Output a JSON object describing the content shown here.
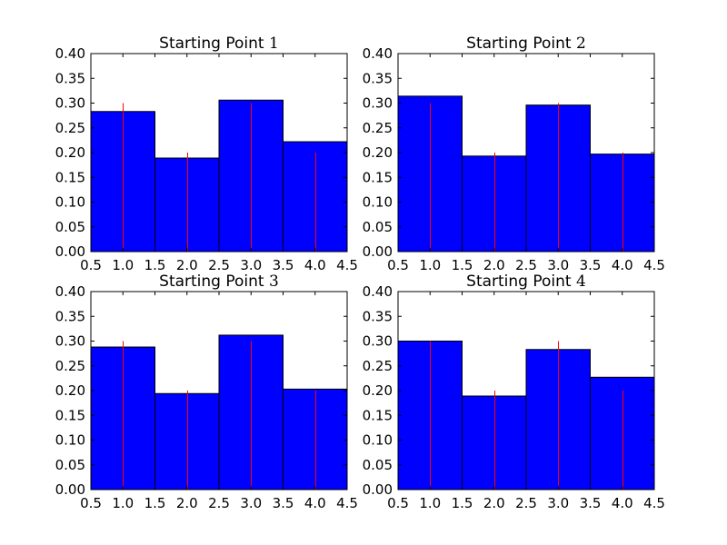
{
  "colors": {
    "bar_fill": "#0000ff",
    "bar_edge": "#000000",
    "reference_line": "#ff0000",
    "background": "#ffffff"
  },
  "chart_data": [
    {
      "type": "bar",
      "title": "Starting Point 1",
      "title_text": "Starting Point ",
      "title_number": "1",
      "xlim": [
        0.5,
        4.5
      ],
      "ylim": [
        0.0,
        0.4
      ],
      "xticks": [
        "0.5",
        "1.0",
        "1.5",
        "2.0",
        "2.5",
        "3.0",
        "3.5",
        "4.0",
        "4.5"
      ],
      "yticks": [
        "0.00",
        "0.05",
        "0.10",
        "0.15",
        "0.20",
        "0.25",
        "0.30",
        "0.35",
        "0.40"
      ],
      "bar_edges": [
        0.5,
        1.5,
        2.5,
        3.5,
        4.5
      ],
      "values": [
        0.283,
        0.189,
        0.306,
        0.222
      ],
      "reference_lines": [
        {
          "x": 1.0,
          "y": 0.3
        },
        {
          "x": 2.0,
          "y": 0.2
        },
        {
          "x": 3.0,
          "y": 0.3
        },
        {
          "x": 4.0,
          "y": 0.2
        }
      ],
      "grid": false
    },
    {
      "type": "bar",
      "title": "Starting Point 2",
      "title_text": "Starting Point ",
      "title_number": "2",
      "xlim": [
        0.5,
        4.5
      ],
      "ylim": [
        0.0,
        0.4
      ],
      "xticks": [
        "0.5",
        "1.0",
        "1.5",
        "2.0",
        "2.5",
        "3.0",
        "3.5",
        "4.0",
        "4.5"
      ],
      "yticks": [
        "0.00",
        "0.05",
        "0.10",
        "0.15",
        "0.20",
        "0.25",
        "0.30",
        "0.35",
        "0.40"
      ],
      "bar_edges": [
        0.5,
        1.5,
        2.5,
        3.5,
        4.5
      ],
      "values": [
        0.314,
        0.193,
        0.296,
        0.197
      ],
      "reference_lines": [
        {
          "x": 1.0,
          "y": 0.3
        },
        {
          "x": 2.0,
          "y": 0.2
        },
        {
          "x": 3.0,
          "y": 0.3
        },
        {
          "x": 4.0,
          "y": 0.2
        }
      ],
      "grid": false
    },
    {
      "type": "bar",
      "title": "Starting Point 3",
      "title_text": "Starting Point ",
      "title_number": "3",
      "xlim": [
        0.5,
        4.5
      ],
      "ylim": [
        0.0,
        0.4
      ],
      "xticks": [
        "0.5",
        "1.0",
        "1.5",
        "2.0",
        "2.5",
        "3.0",
        "3.5",
        "4.0",
        "4.5"
      ],
      "yticks": [
        "0.00",
        "0.05",
        "0.10",
        "0.15",
        "0.20",
        "0.25",
        "0.30",
        "0.35",
        "0.40"
      ],
      "bar_edges": [
        0.5,
        1.5,
        2.5,
        3.5,
        4.5
      ],
      "values": [
        0.288,
        0.194,
        0.312,
        0.203
      ],
      "reference_lines": [
        {
          "x": 1.0,
          "y": 0.3
        },
        {
          "x": 2.0,
          "y": 0.2
        },
        {
          "x": 3.0,
          "y": 0.3
        },
        {
          "x": 4.0,
          "y": 0.2
        }
      ],
      "grid": false
    },
    {
      "type": "bar",
      "title": "Starting Point 4",
      "title_text": "Starting Point ",
      "title_number": "4",
      "xlim": [
        0.5,
        4.5
      ],
      "ylim": [
        0.0,
        0.4
      ],
      "xticks": [
        "0.5",
        "1.0",
        "1.5",
        "2.0",
        "2.5",
        "3.0",
        "3.5",
        "4.0",
        "4.5"
      ],
      "yticks": [
        "0.00",
        "0.05",
        "0.10",
        "0.15",
        "0.20",
        "0.25",
        "0.30",
        "0.35",
        "0.40"
      ],
      "bar_edges": [
        0.5,
        1.5,
        2.5,
        3.5,
        4.5
      ],
      "values": [
        0.3,
        0.189,
        0.283,
        0.227
      ],
      "reference_lines": [
        {
          "x": 1.0,
          "y": 0.3
        },
        {
          "x": 2.0,
          "y": 0.2
        },
        {
          "x": 3.0,
          "y": 0.3
        },
        {
          "x": 4.0,
          "y": 0.2
        }
      ],
      "grid": false
    }
  ]
}
